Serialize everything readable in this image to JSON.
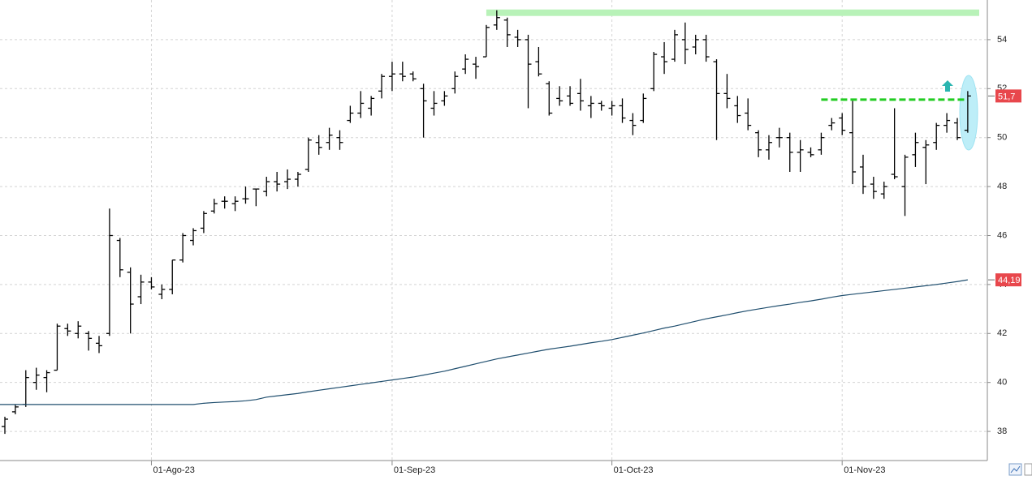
{
  "chart_data": {
    "type": "ohlc",
    "categories": [
      null,
      null,
      null,
      null,
      null,
      null,
      null,
      null,
      null,
      null,
      null,
      null,
      null,
      null,
      "01-Ago-23",
      null,
      null,
      null,
      null,
      null,
      null,
      null,
      null,
      null,
      null,
      null,
      null,
      null,
      null,
      null,
      null,
      null,
      null,
      null,
      null,
      null,
      null,
      "01-Sep-23",
      null,
      null,
      null,
      null,
      null,
      null,
      null,
      null,
      null,
      null,
      null,
      null,
      null,
      null,
      null,
      null,
      null,
      null,
      null,
      null,
      "01-Oct-23",
      null,
      null,
      null,
      null,
      null,
      null,
      null,
      null,
      null,
      null,
      null,
      null,
      null,
      null,
      null,
      null,
      null,
      null,
      null,
      null,
      null,
      "01-Nov-23",
      null,
      null,
      null,
      null,
      null,
      null,
      null,
      null,
      null,
      null,
      null,
      null
    ],
    "open": [
      38.2,
      38.8,
      39.1,
      40.0,
      40.2,
      40.5,
      42.2,
      42.0,
      42.0,
      41.6,
      42.0,
      45.8,
      44.5,
      43.5,
      44.1,
      43.6,
      43.8,
      45.0,
      45.8,
      46.3,
      47.0,
      47.4,
      47.3,
      47.5,
      47.9,
      47.8,
      48.2,
      48.2,
      48.3,
      48.7,
      49.8,
      49.8,
      50.0,
      50.7,
      51.0,
      51.2,
      51.9,
      52.5,
      52.6,
      52.6,
      52.0,
      51.2,
      51.5,
      52.0,
      52.8,
      53.0,
      53.3,
      54.6,
      54.8,
      54.1,
      54.0,
      53.1,
      52.2,
      51.6,
      51.7,
      51.8,
      51.3,
      51.4,
      51.2,
      51.3,
      50.7,
      50.7,
      52.0,
      53.3,
      53.2,
      54.0,
      53.7,
      54.0,
      53.1,
      51.8,
      51.3,
      51.0,
      50.2,
      49.5,
      50.0,
      50.0,
      49.4,
      49.4,
      49.5,
      50.5,
      50.8,
      50.2,
      48.8,
      48.1,
      47.7,
      48.5,
      48.0,
      49.3,
      49.6,
      49.8,
      50.5,
      50.6,
      50.3
    ],
    "high": [
      38.6,
      39.1,
      40.5,
      40.6,
      40.5,
      42.4,
      42.4,
      42.5,
      42.1,
      41.9,
      47.1,
      45.9,
      44.7,
      44.4,
      44.3,
      44.0,
      45.0,
      46.1,
      46.3,
      47.0,
      47.5,
      47.6,
      47.6,
      48.0,
      47.9,
      48.4,
      48.6,
      48.7,
      48.6,
      50.0,
      50.1,
      50.4,
      50.3,
      51.3,
      51.9,
      51.7,
      52.6,
      53.1,
      53.1,
      52.7,
      52.2,
      51.9,
      51.9,
      52.7,
      53.4,
      53.3,
      54.6,
      55.2,
      54.9,
      54.4,
      54.2,
      53.7,
      52.3,
      52.1,
      52.1,
      52.4,
      51.7,
      51.5,
      51.5,
      51.6,
      51.0,
      51.8,
      53.5,
      53.9,
      54.4,
      54.7,
      54.2,
      54.2,
      53.2,
      52.6,
      51.7,
      51.6,
      50.3,
      50.1,
      50.4,
      50.2,
      49.9,
      49.6,
      50.2,
      50.8,
      51.0,
      51.5,
      49.3,
      48.4,
      48.2,
      51.2,
      49.3,
      50.2,
      49.9,
      50.6,
      51.0,
      50.8,
      51.9
    ],
    "low": [
      37.9,
      38.7,
      39.0,
      39.7,
      39.6,
      40.5,
      41.9,
      41.8,
      41.3,
      41.2,
      41.9,
      44.3,
      42.0,
      43.2,
      43.8,
      43.4,
      43.6,
      44.9,
      45.6,
      46.1,
      46.9,
      47.1,
      47.0,
      47.3,
      47.2,
      47.6,
      47.8,
      47.9,
      48.0,
      48.6,
      49.3,
      49.5,
      49.5,
      50.6,
      50.8,
      50.9,
      51.6,
      51.9,
      52.3,
      52.3,
      50.0,
      50.9,
      51.3,
      51.8,
      52.6,
      52.4,
      53.3,
      54.4,
      53.7,
      53.7,
      51.2,
      52.5,
      50.9,
      51.3,
      51.3,
      51.1,
      50.8,
      51.1,
      50.9,
      50.6,
      50.1,
      50.6,
      51.9,
      52.6,
      53.1,
      53.0,
      53.4,
      53.1,
      49.9,
      51.2,
      50.6,
      50.3,
      49.2,
      49.1,
      49.6,
      48.6,
      48.6,
      49.2,
      49.3,
      50.3,
      50.1,
      48.1,
      47.7,
      47.5,
      47.5,
      48.3,
      46.8,
      48.8,
      48.1,
      49.5,
      50.2,
      49.9,
      50.2
    ],
    "close": [
      38.5,
      39.0,
      40.2,
      40.3,
      40.4,
      42.3,
      42.1,
      42.3,
      41.8,
      41.5,
      46.0,
      44.6,
      43.2,
      44.1,
      43.9,
      43.8,
      45.0,
      46.0,
      46.2,
      46.9,
      47.3,
      47.4,
      47.4,
      47.5,
      47.9,
      48.2,
      48.1,
      48.3,
      48.5,
      49.9,
      49.6,
      50.1,
      49.8,
      51.0,
      51.4,
      51.6,
      52.5,
      52.6,
      52.5,
      52.4,
      51.5,
      51.4,
      51.7,
      52.5,
      53.2,
      52.9,
      54.5,
      54.9,
      54.2,
      54.0,
      53.0,
      52.6,
      51.0,
      51.5,
      51.4,
      51.5,
      51.4,
      51.3,
      51.3,
      50.8,
      50.5,
      51.6,
      53.4,
      53.1,
      54.2,
      53.6,
      54.0,
      53.3,
      51.8,
      51.6,
      50.9,
      50.5,
      49.5,
      49.8,
      50.0,
      49.4,
      49.5,
      49.3,
      50.0,
      50.6,
      50.3,
      48.6,
      48.0,
      47.8,
      48.0,
      48.4,
      49.2,
      49.8,
      49.7,
      50.5,
      50.7,
      50.0,
      51.7
    ],
    "color": "#000000",
    "moving_average": {
      "color": "#1f4e6e",
      "values": [
        39.1,
        39.1,
        39.1,
        39.1,
        39.1,
        39.1,
        39.1,
        39.1,
        39.1,
        39.1,
        39.1,
        39.1,
        39.1,
        39.1,
        39.1,
        39.1,
        39.1,
        39.1,
        39.1,
        39.15,
        39.18,
        39.2,
        39.22,
        39.25,
        39.3,
        39.4,
        39.45,
        39.5,
        39.55,
        39.62,
        39.68,
        39.74,
        39.8,
        39.86,
        39.92,
        39.98,
        40.04,
        40.1,
        40.16,
        40.22,
        40.3,
        40.38,
        40.46,
        40.56,
        40.66,
        40.76,
        40.86,
        40.96,
        41.04,
        41.12,
        41.2,
        41.28,
        41.36,
        41.42,
        41.48,
        41.55,
        41.62,
        41.68,
        41.75,
        41.84,
        41.93,
        42.02,
        42.12,
        42.22,
        42.3,
        42.4,
        42.5,
        42.6,
        42.68,
        42.76,
        42.85,
        42.93,
        43.0,
        43.07,
        43.14,
        43.2,
        43.27,
        43.33,
        43.4,
        43.48,
        43.55,
        43.6,
        43.65,
        43.7,
        43.75,
        43.8,
        43.85,
        43.9,
        43.95,
        44.0,
        44.06,
        44.12,
        44.19
      ]
    },
    "levels": [
      {
        "value": 55.1,
        "color": "#b8f2b8"
      },
      {
        "value": 51.55,
        "color": "#22cc22",
        "dashed": true
      }
    ],
    "price_tags": [
      {
        "value": 51.7,
        "label": "51,7",
        "color": "#e8474c"
      },
      {
        "value": 44.19,
        "label": "44,19",
        "color": "#e8474c"
      }
    ],
    "ylim": [
      36.81,
      55.62
    ],
    "yticks": [
      38,
      40,
      42,
      44,
      46,
      48,
      50,
      52,
      54
    ],
    "grid": true
  }
}
